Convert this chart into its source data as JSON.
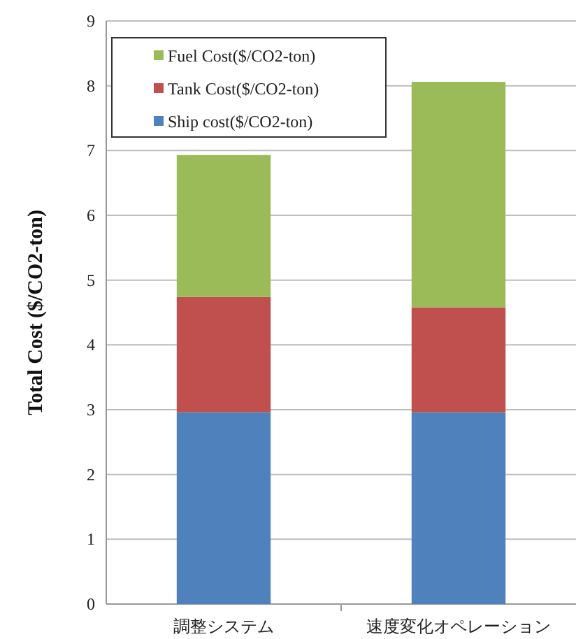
{
  "chart_data": {
    "type": "bar",
    "stacked": true,
    "ylabel": "Total Cost ($/CO2-ton)",
    "categories": [
      "調整システム",
      "速度変化オペレーション"
    ],
    "series": [
      {
        "name": "Ship cost($/CO2-ton)",
        "color": "#4f81bd",
        "values": [
          2.96,
          2.96
        ]
      },
      {
        "name": "Tank Cost($/CO2-ton)",
        "color": "#c0504d",
        "values": [
          1.78,
          1.62
        ]
      },
      {
        "name": "Fuel Cost($/CO2-ton)",
        "color": "#9bbb59",
        "values": [
          2.19,
          3.48
        ]
      }
    ],
    "ylim": [
      0,
      9
    ],
    "yticks": [
      0,
      1,
      2,
      3,
      4,
      5,
      6,
      7,
      8,
      9
    ],
    "grid": "y",
    "legend": "top left"
  }
}
